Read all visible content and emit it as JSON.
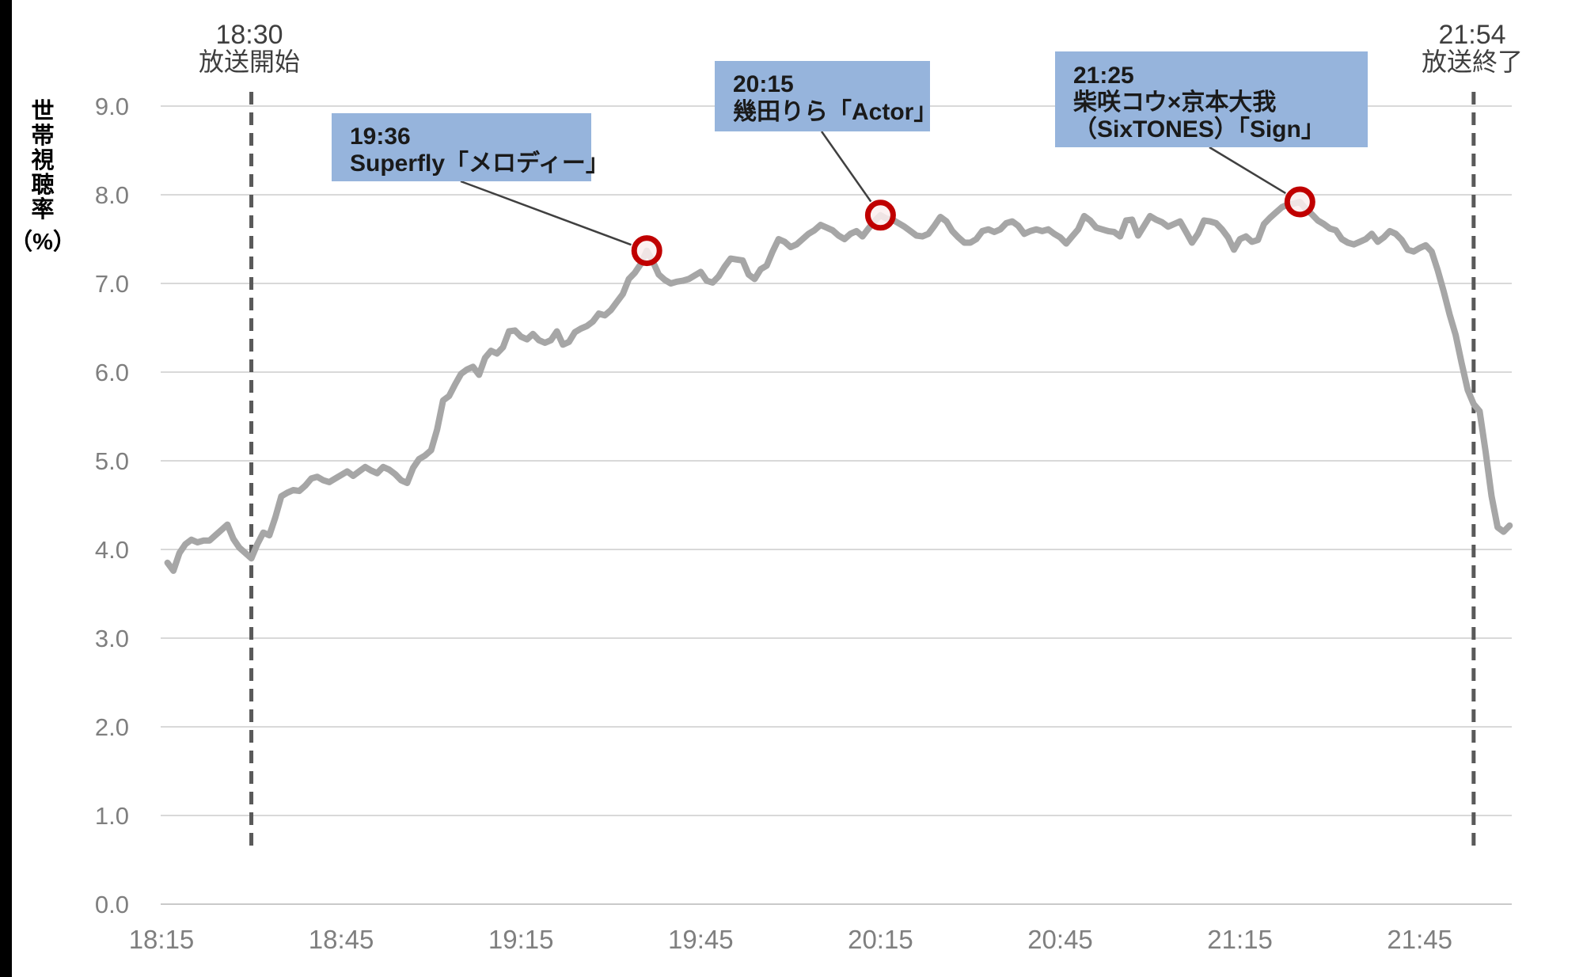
{
  "page": {
    "background_color": "#ffffff",
    "left_edge_bar_color": "#000000"
  },
  "chart_data": {
    "type": "line",
    "title": "",
    "ylabel": "世帯視聴率（%）",
    "ylabel_chars": [
      "世",
      "帯",
      "視",
      "聴",
      "率"
    ],
    "ylabel_unit": "（%）",
    "ylim": [
      0.0,
      9.0
    ],
    "y_tick_labels": [
      "9.0",
      "8.0",
      "7.0",
      "6.0",
      "5.0",
      "4.0",
      "3.0",
      "2.0",
      "1.0",
      "0.0"
    ],
    "x_tick_labels": [
      "18:15",
      "18:45",
      "19:15",
      "19:45",
      "20:15",
      "20:45",
      "21:15",
      "21:45"
    ],
    "grid": "horizontal",
    "legend": "none",
    "line_color": "#a6a6a6",
    "gridline_color": "#d9d9d9",
    "broadcast": {
      "start_time": "18:30",
      "start_label": "放送開始",
      "end_time": "21:54",
      "end_label": "放送終了",
      "marker_color": "#595959"
    },
    "annotations": [
      {
        "time": "19:36",
        "title": "Superfly「メロディー」",
        "value": 7.37,
        "box_color": "#96b4dc",
        "circle_color": "#c00000"
      },
      {
        "time": "20:15",
        "title": "幾田りら「Actor」",
        "value": 7.77,
        "box_color": "#96b4dc",
        "circle_color": "#c00000"
      },
      {
        "time": "21:25",
        "title_line1": "柴咲コウ×京本大我",
        "title_line2": "（SixTONES）「Sign」",
        "value": 7.92,
        "box_color": "#96b4dc",
        "circle_color": "#c00000"
      }
    ],
    "series": [
      {
        "name": "世帯視聴率",
        "start_time": "18:16",
        "step_minutes": 1,
        "values": [
          3.85,
          3.76,
          3.96,
          4.06,
          4.11,
          4.08,
          4.1,
          4.1,
          4.16,
          4.22,
          4.28,
          4.12,
          4.02,
          3.96,
          3.9,
          4.06,
          4.19,
          4.16,
          4.36,
          4.6,
          4.64,
          4.67,
          4.66,
          4.72,
          4.8,
          4.82,
          4.78,
          4.76,
          4.8,
          4.84,
          4.88,
          4.83,
          4.88,
          4.93,
          4.89,
          4.86,
          4.93,
          4.9,
          4.85,
          4.78,
          4.75,
          4.92,
          5.02,
          5.06,
          5.12,
          5.35,
          5.68,
          5.73,
          5.86,
          5.98,
          6.03,
          6.06,
          5.97,
          6.16,
          6.24,
          6.21,
          6.28,
          6.46,
          6.47,
          6.4,
          6.37,
          6.43,
          6.36,
          6.33,
          6.36,
          6.46,
          6.31,
          6.34,
          6.45,
          6.49,
          6.52,
          6.57,
          6.66,
          6.64,
          6.7,
          6.79,
          6.88,
          7.05,
          7.12,
          7.22,
          7.37,
          7.25,
          7.1,
          7.04,
          7.0,
          7.02,
          7.03,
          7.05,
          7.09,
          7.13,
          7.03,
          7.01,
          7.08,
          7.19,
          7.28,
          7.27,
          7.26,
          7.1,
          7.05,
          7.16,
          7.2,
          7.36,
          7.5,
          7.47,
          7.41,
          7.44,
          7.5,
          7.56,
          7.6,
          7.66,
          7.63,
          7.6,
          7.54,
          7.5,
          7.56,
          7.59,
          7.53,
          7.62,
          7.7,
          7.77,
          7.73,
          7.72,
          7.68,
          7.64,
          7.59,
          7.54,
          7.53,
          7.56,
          7.65,
          7.75,
          7.7,
          7.59,
          7.52,
          7.46,
          7.46,
          7.5,
          7.59,
          7.61,
          7.58,
          7.61,
          7.68,
          7.7,
          7.65,
          7.56,
          7.59,
          7.61,
          7.59,
          7.61,
          7.56,
          7.52,
          7.45,
          7.53,
          7.61,
          7.76,
          7.71,
          7.63,
          7.61,
          7.59,
          7.58,
          7.53,
          7.71,
          7.72,
          7.54,
          7.65,
          7.76,
          7.72,
          7.69,
          7.64,
          7.67,
          7.7,
          7.58,
          7.46,
          7.56,
          7.71,
          7.7,
          7.68,
          7.61,
          7.52,
          7.38,
          7.5,
          7.53,
          7.47,
          7.49,
          7.67,
          7.74,
          7.8,
          7.86,
          7.89,
          7.9,
          7.92,
          7.84,
          7.78,
          7.71,
          7.67,
          7.62,
          7.6,
          7.5,
          7.46,
          7.44,
          7.47,
          7.5,
          7.56,
          7.47,
          7.52,
          7.59,
          7.56,
          7.49,
          7.38,
          7.36,
          7.4,
          7.43,
          7.36,
          7.15,
          6.91,
          6.65,
          6.42,
          6.1,
          5.8,
          5.64,
          5.56,
          5.1,
          4.6,
          4.25,
          4.2,
          4.27
        ]
      }
    ]
  }
}
